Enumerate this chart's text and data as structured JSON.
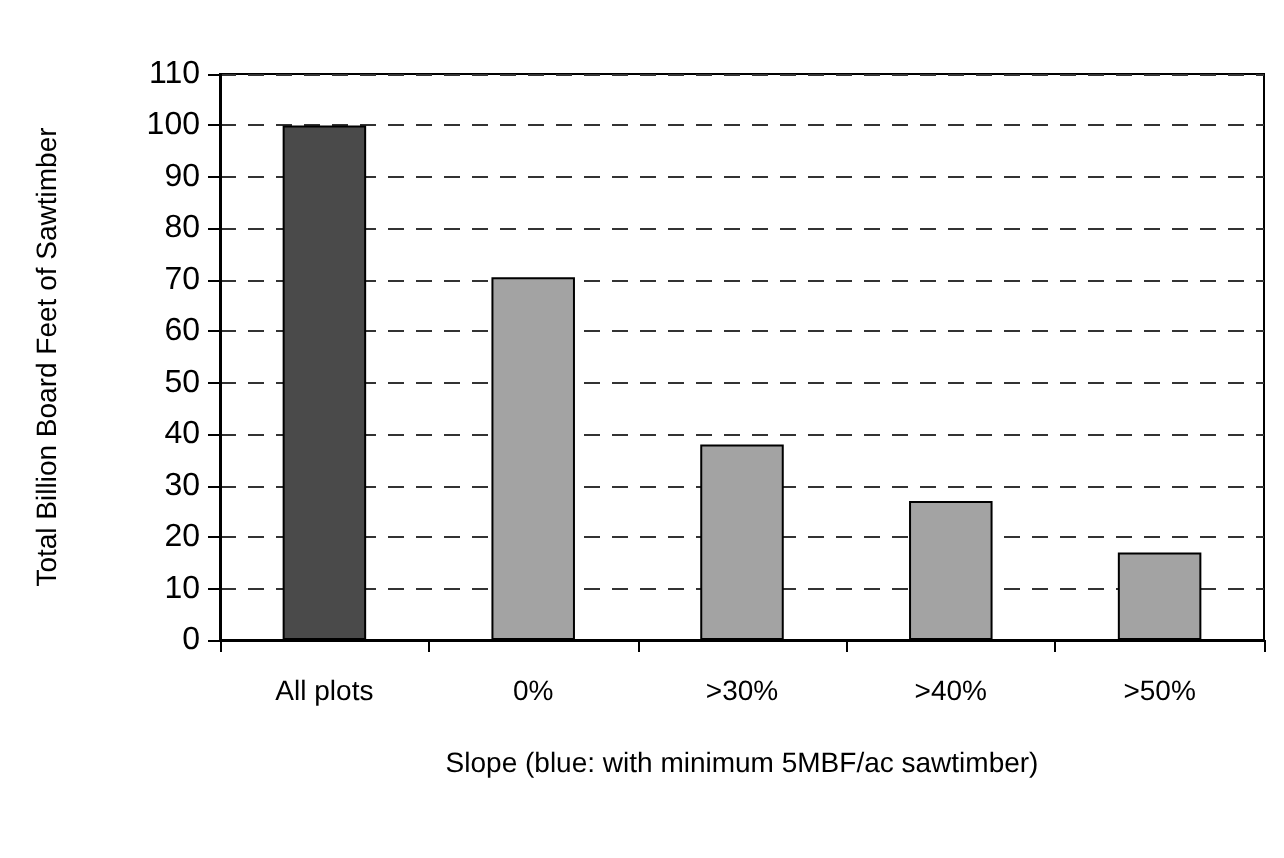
{
  "chart_data": {
    "type": "bar",
    "xlabel": "Slope (blue: with minimum 5MBF/ac sawtimber)",
    "ylabel": "Total Billion Board Feet of Sawtimber",
    "categories": [
      "All plots",
      "0%",
      ">30%",
      ">40%",
      ">50%"
    ],
    "values": [
      100,
      70.5,
      38,
      27,
      17
    ],
    "colors": [
      "#4a4a4a",
      "#a3a3a3",
      "#a3a3a3",
      "#a3a3a3",
      "#a3a3a3"
    ],
    "ylim": [
      0,
      110
    ],
    "yticks": [
      0,
      10,
      20,
      30,
      40,
      50,
      60,
      70,
      80,
      90,
      100,
      110
    ],
    "grid": "y"
  }
}
